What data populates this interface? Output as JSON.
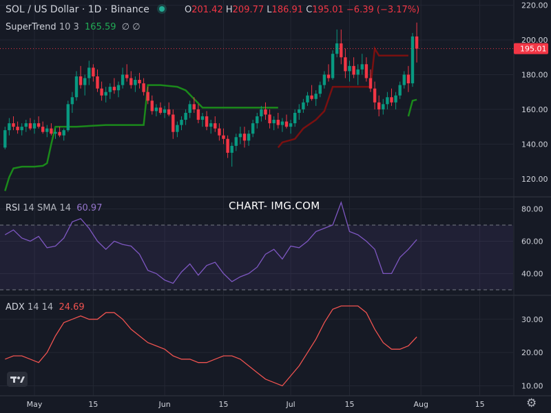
{
  "header": {
    "title": "SOL / US Dollar · 1D · Binance",
    "ohlc": {
      "o_label": "O",
      "o": "201.42",
      "h_label": "H",
      "h": "209.77",
      "l_label": "L",
      "l": "186.91",
      "c_label": "C",
      "c": "195.01",
      "change": "−6.39 (−3.17%)"
    }
  },
  "supertrend_legend": {
    "name": "SuperTrend",
    "params": "10 3",
    "value": "165.59",
    "icons": "∅ ∅"
  },
  "rsi_legend": {
    "name": "RSI",
    "params": "14 SMA 14",
    "value": "60.97"
  },
  "adx_legend": {
    "name": "ADX",
    "params": "14 14",
    "value": "24.69"
  },
  "watermark": "CHART- IMG.COM",
  "price_tag": "195.01",
  "colors": {
    "up": "#089981",
    "down": "#f23645",
    "supertrend_up": "#1b8a1b",
    "supertrend_down": "#7a1010",
    "rsi": "#7e57c2",
    "adx": "#f05350",
    "background": "#161a25",
    "grid": "#232733",
    "text": "#d1d4dc"
  },
  "chart_data": [
    {
      "type": "candlestick",
      "x_ticks": [
        {
          "label": "May",
          "day": 0
        },
        {
          "label": "15",
          "day": 14
        },
        {
          "label": "Jun",
          "day": 31
        },
        {
          "label": "15",
          "day": 45
        },
        {
          "label": "Jul",
          "day": 61
        },
        {
          "label": "15",
          "day": 75
        },
        {
          "label": "Aug",
          "day": 92
        },
        {
          "label": "15",
          "day": 106
        }
      ],
      "y_ticks": [
        "120.00",
        "140.00",
        "160.00",
        "180.00",
        "200.00",
        "220.00"
      ],
      "ylim": [
        110,
        223
      ],
      "candles": [
        [
          -7,
          138,
          150,
          137,
          148
        ],
        [
          -6,
          148,
          155,
          145,
          152
        ],
        [
          -5,
          152,
          156,
          148,
          150
        ],
        [
          -4,
          150,
          153,
          146,
          148
        ],
        [
          -3,
          148,
          152,
          145,
          150
        ],
        [
          -2,
          150,
          154,
          147,
          152
        ],
        [
          -1,
          152,
          155,
          148,
          149
        ],
        [
          0,
          149,
          154,
          146,
          152
        ],
        [
          1,
          152,
          156,
          149,
          150
        ],
        [
          2,
          150,
          153,
          146,
          147
        ],
        [
          3,
          147,
          151,
          144,
          149
        ],
        [
          4,
          149,
          152,
          145,
          146
        ],
        [
          5,
          146,
          149,
          143,
          147
        ],
        [
          6,
          147,
          150,
          144,
          145
        ],
        [
          7,
          145,
          149,
          142,
          148
        ],
        [
          8,
          148,
          165,
          147,
          163
        ],
        [
          9,
          163,
          170,
          158,
          167
        ],
        [
          10,
          167,
          182,
          165,
          179
        ],
        [
          11,
          179,
          185,
          172,
          174
        ],
        [
          12,
          174,
          180,
          168,
          178
        ],
        [
          13,
          178,
          188,
          174,
          184
        ],
        [
          14,
          184,
          186,
          176,
          179
        ],
        [
          15,
          179,
          183,
          170,
          172
        ],
        [
          16,
          172,
          176,
          165,
          168
        ],
        [
          17,
          168,
          173,
          164,
          170
        ],
        [
          18,
          170,
          175,
          166,
          173
        ],
        [
          19,
          173,
          178,
          169,
          171
        ],
        [
          20,
          171,
          176,
          167,
          174
        ],
        [
          21,
          174,
          184,
          172,
          180
        ],
        [
          22,
          180,
          186,
          176,
          178
        ],
        [
          23,
          178,
          182,
          172,
          174
        ],
        [
          24,
          174,
          179,
          170,
          177
        ],
        [
          25,
          177,
          181,
          172,
          175
        ],
        [
          26,
          175,
          178,
          168,
          170
        ],
        [
          27,
          170,
          173,
          163,
          165
        ],
        [
          28,
          165,
          168,
          157,
          159
        ],
        [
          29,
          159,
          163,
          156,
          161
        ],
        [
          30,
          161,
          164,
          157,
          158
        ],
        [
          31,
          158,
          162,
          155,
          160
        ],
        [
          32,
          160,
          164,
          156,
          157
        ],
        [
          33,
          157,
          160,
          143,
          147
        ],
        [
          34,
          147,
          153,
          144,
          151
        ],
        [
          35,
          151,
          156,
          148,
          154
        ],
        [
          36,
          154,
          160,
          151,
          158
        ],
        [
          37,
          158,
          165,
          155,
          163
        ],
        [
          38,
          163,
          167,
          158,
          160
        ],
        [
          39,
          160,
          163,
          152,
          154
        ],
        [
          40,
          154,
          158,
          150,
          156
        ],
        [
          41,
          156,
          159,
          148,
          150
        ],
        [
          42,
          150,
          154,
          146,
          152
        ],
        [
          43,
          152,
          156,
          147,
          149
        ],
        [
          44,
          149,
          152,
          142,
          145
        ],
        [
          45,
          145,
          149,
          140,
          143
        ],
        [
          46,
          143,
          145,
          132,
          135
        ],
        [
          47,
          135,
          141,
          127,
          139
        ],
        [
          48,
          139,
          146,
          136,
          144
        ],
        [
          49,
          144,
          150,
          140,
          146
        ],
        [
          50,
          146,
          150,
          138,
          142
        ],
        [
          51,
          142,
          148,
          139,
          146
        ],
        [
          52,
          146,
          154,
          144,
          152
        ],
        [
          53,
          152,
          158,
          149,
          156
        ],
        [
          54,
          156,
          162,
          153,
          160
        ],
        [
          55,
          160,
          164,
          154,
          157
        ],
        [
          56,
          157,
          160,
          149,
          152
        ],
        [
          57,
          152,
          156,
          148,
          154
        ],
        [
          58,
          154,
          158,
          149,
          151
        ],
        [
          59,
          151,
          155,
          147,
          153
        ],
        [
          60,
          153,
          157,
          149,
          150
        ],
        [
          61,
          150,
          154,
          146,
          152
        ],
        [
          62,
          152,
          160,
          150,
          158
        ],
        [
          63,
          158,
          163,
          154,
          160
        ],
        [
          64,
          160,
          166,
          158,
          164
        ],
        [
          65,
          164,
          170,
          162,
          168
        ],
        [
          66,
          168,
          174,
          165,
          166
        ],
        [
          67,
          166,
          171,
          162,
          169
        ],
        [
          68,
          169,
          176,
          167,
          174
        ],
        [
          69,
          174,
          182,
          172,
          180
        ],
        [
          70,
          180,
          186,
          176,
          178
        ],
        [
          71,
          178,
          194,
          177,
          192
        ],
        [
          72,
          192,
          206,
          190,
          198
        ],
        [
          73,
          198,
          206,
          186,
          190
        ],
        [
          74,
          190,
          195,
          178,
          182
        ],
        [
          75,
          182,
          188,
          176,
          185
        ],
        [
          76,
          185,
          190,
          178,
          180
        ],
        [
          77,
          180,
          186,
          174,
          183
        ],
        [
          78,
          183,
          192,
          180,
          186
        ],
        [
          79,
          186,
          190,
          176,
          178
        ],
        [
          80,
          178,
          183,
          170,
          172
        ],
        [
          81,
          172,
          176,
          160,
          164
        ],
        [
          82,
          164,
          168,
          156,
          160
        ],
        [
          83,
          160,
          166,
          157,
          163
        ],
        [
          84,
          163,
          170,
          160,
          167
        ],
        [
          85,
          167,
          172,
          162,
          164
        ],
        [
          86,
          164,
          170,
          160,
          168
        ],
        [
          87,
          168,
          176,
          166,
          174
        ],
        [
          88,
          174,
          182,
          172,
          180
        ],
        [
          89,
          180,
          185,
          170,
          175
        ],
        [
          90,
          175,
          204,
          173,
          202
        ],
        [
          91,
          202,
          210,
          187,
          195
        ]
      ],
      "supertrend": [
        [
          -7,
          113
        ],
        [
          -6,
          121
        ],
        [
          -5,
          126
        ],
        [
          -3,
          127
        ],
        [
          0,
          127
        ],
        [
          2,
          127.5
        ],
        [
          3,
          129
        ],
        [
          4,
          140
        ],
        [
          5,
          150
        ],
        [
          6,
          150
        ],
        [
          10,
          150
        ],
        [
          17,
          151
        ],
        [
          25,
          151
        ],
        [
          26,
          151
        ],
        [
          27,
          174
        ],
        [
          30,
          174
        ],
        [
          34,
          173
        ],
        [
          36,
          171
        ],
        [
          38,
          166
        ],
        [
          40,
          161
        ],
        [
          44,
          161
        ],
        [
          50,
          161
        ],
        [
          53,
          161
        ],
        [
          57,
          161
        ],
        [
          58,
          161
        ],
        [
          58,
          138
        ],
        [
          59,
          141
        ],
        [
          62,
          143
        ],
        [
          64,
          149
        ],
        [
          67,
          154
        ],
        [
          69,
          159
        ],
        [
          70,
          166
        ],
        [
          71,
          173
        ],
        [
          73,
          173
        ],
        [
          75,
          173
        ],
        [
          77,
          173
        ],
        [
          80,
          173
        ],
        [
          81,
          195
        ],
        [
          82,
          191
        ],
        [
          86,
          191
        ],
        [
          88,
          191
        ],
        [
          89,
          191
        ],
        [
          89,
          156
        ],
        [
          90,
          165
        ],
        [
          91,
          165.59
        ]
      ]
    },
    {
      "type": "line",
      "name": "RSI",
      "y_ticks": [
        "40.00",
        "60.00",
        "80.00"
      ],
      "ylim": [
        27,
        87
      ],
      "bands": [
        30,
        70
      ],
      "x": [
        -7,
        -5,
        -3,
        -1,
        1,
        3,
        5,
        7,
        9,
        11,
        13,
        15,
        17,
        19,
        21,
        23,
        25,
        27,
        29,
        31,
        33,
        35,
        37,
        39,
        41,
        43,
        45,
        47,
        49,
        51,
        53,
        55,
        57,
        59,
        61,
        63,
        65,
        67,
        69,
        71,
        73,
        75,
        77,
        79,
        81,
        83,
        85,
        87,
        89,
        91
      ],
      "values": [
        64,
        67,
        62,
        60,
        63,
        56,
        57,
        62,
        72,
        74,
        68,
        60,
        55,
        60,
        58,
        57,
        52,
        42,
        40,
        36,
        34,
        41,
        46,
        39,
        45,
        47,
        40,
        35,
        38,
        40,
        44,
        52,
        55,
        49,
        57,
        56,
        60,
        66,
        68,
        70,
        84,
        66,
        64,
        60,
        55,
        40,
        40,
        50,
        55,
        61
      ]
    },
    {
      "type": "line",
      "name": "ADX",
      "y_ticks": [
        "10.00",
        "20.00",
        "30.00"
      ],
      "ylim": [
        7,
        37
      ],
      "x": [
        -7,
        -5,
        -3,
        -1,
        1,
        3,
        5,
        7,
        9,
        11,
        13,
        15,
        17,
        19,
        21,
        23,
        25,
        27,
        29,
        31,
        33,
        35,
        37,
        39,
        41,
        43,
        45,
        47,
        49,
        51,
        53,
        55,
        57,
        59,
        61,
        63,
        65,
        67,
        69,
        71,
        73,
        75,
        77,
        79,
        81,
        83,
        85,
        87,
        89,
        91
      ],
      "values": [
        18,
        19,
        19,
        18,
        17,
        20,
        25,
        29,
        30,
        31,
        30,
        30,
        32,
        32,
        30,
        27,
        25,
        23,
        22,
        21,
        19,
        18,
        18,
        17,
        17,
        18,
        19,
        19,
        18,
        16,
        14,
        12,
        11,
        10,
        13,
        16,
        20,
        24,
        29,
        33,
        34,
        34,
        34,
        32,
        27,
        23,
        21,
        21,
        22,
        24.69
      ]
    }
  ]
}
